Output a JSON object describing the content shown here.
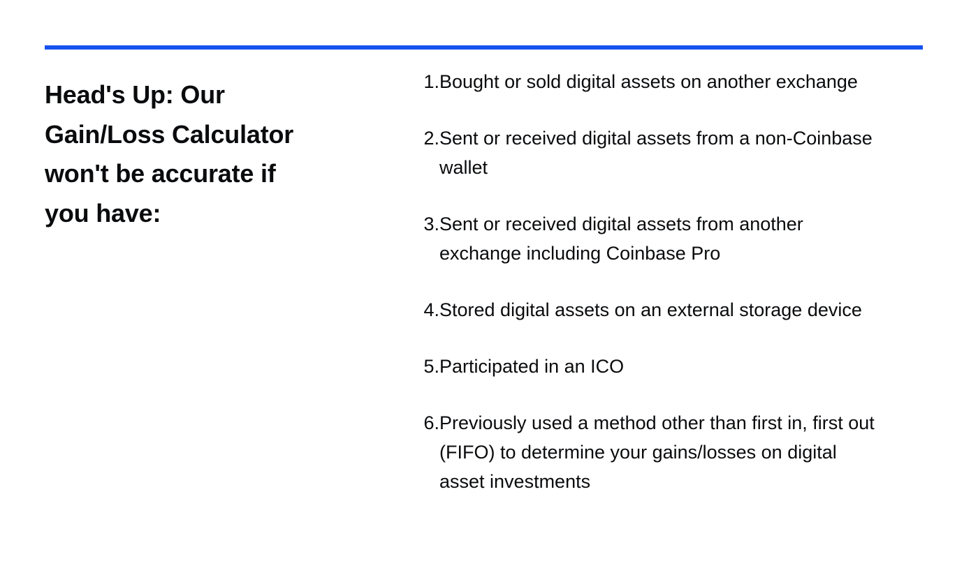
{
  "accent_color": "#1652f0",
  "heading": {
    "lines": [
      "Head's Up: Our",
      "Gain/Loss Calculator",
      "won't be accurate if",
      "you have:"
    ]
  },
  "conditions": [
    {
      "number": "1.",
      "lines": [
        "Bought or sold digital assets on another exchange"
      ]
    },
    {
      "number": "2.",
      "lines": [
        "Sent or received digital assets from a non-Coinbase",
        "wallet"
      ]
    },
    {
      "number": "3.",
      "lines": [
        "Sent or received digital assets from another",
        "exchange including Coinbase Pro"
      ]
    },
    {
      "number": "4.",
      "lines": [
        "Stored digital assets on an external storage device"
      ]
    },
    {
      "number": "5.",
      "lines": [
        "Participated in an ICO"
      ]
    },
    {
      "number": "6.",
      "lines": [
        "Previously used a method other than first in, first out",
        "(FIFO) to determine your gains/losses on digital",
        "asset investments"
      ]
    }
  ]
}
